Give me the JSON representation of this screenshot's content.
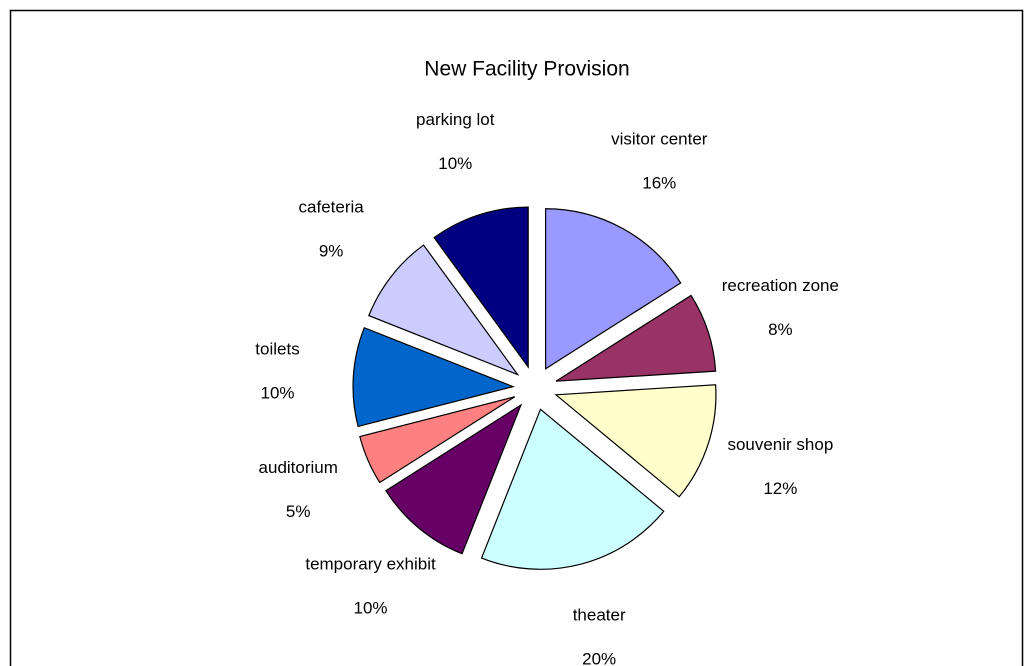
{
  "chart_data": {
    "type": "pie",
    "title": "New Facility Provision",
    "categories": [
      "visitor center",
      "recreation zone",
      "souvenir shop",
      "theater",
      "temporary exhibit",
      "auditorium",
      "toilets",
      "cafeteria",
      "parking lot"
    ],
    "values": [
      16,
      8,
      12,
      20,
      10,
      5,
      10,
      9,
      10
    ],
    "value_labels": [
      "16%",
      "8%",
      "12%",
      "20%",
      "10%",
      "5%",
      "10%",
      "9%",
      "10%"
    ],
    "colors": [
      "#9999ff",
      "#993366",
      "#ffffcc",
      "#ccffff",
      "#660066",
      "#ff8080",
      "#0066cc",
      "#ccccff",
      "#000080"
    ]
  }
}
